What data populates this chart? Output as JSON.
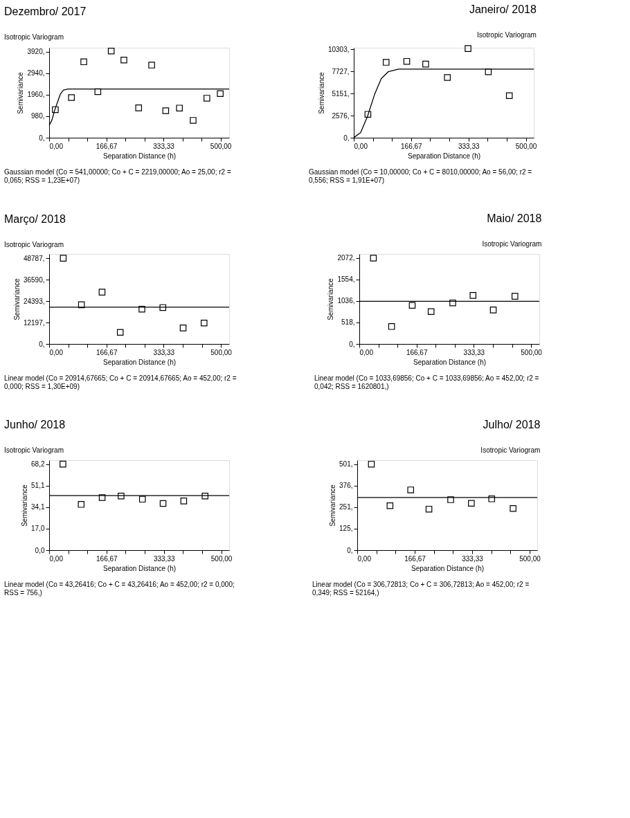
{
  "chart_data": [
    {
      "type": "scatter",
      "title": "Dezembro/ 2017",
      "subtitle": "Isotropic Variogram",
      "xlabel": "Separation Distance (h)",
      "ylabel": "Semivariance",
      "xlim": [
        0,
        525
      ],
      "ylim": [
        0,
        4100
      ],
      "xticks": [
        {
          "value": 0,
          "label": "0,00"
        },
        {
          "value": 55.56,
          "label": null
        },
        {
          "value": 111.11,
          "label": null
        },
        {
          "value": 166.67,
          "label": "166,67"
        },
        {
          "value": 222.22,
          "label": null
        },
        {
          "value": 277.78,
          "label": null
        },
        {
          "value": 333.33,
          "label": "333,33"
        },
        {
          "value": 388.89,
          "label": null
        },
        {
          "value": 444.44,
          "label": null
        },
        {
          "value": 500,
          "label": "500,00"
        }
      ],
      "yticks": [
        {
          "value": 0,
          "label": "0,"
        },
        {
          "value": 980,
          "label": "980,"
        },
        {
          "value": 1960,
          "label": "1960,"
        },
        {
          "value": 2940,
          "label": "2940,"
        },
        {
          "value": 3920,
          "label": "3920,"
        }
      ],
      "marker": "square",
      "annotations": [
        "Gaussian model (Co = 541,00000; Co + C = 2219,00000; Ao = 25,00; r2 = 0,065; RSS = 1,23E+07)"
      ],
      "series": [
        {
          "color": "#000000",
          "x": [
            18,
            65,
            101,
            142,
            181,
            218,
            261,
            299,
            340,
            380,
            420,
            460,
            499
          ],
          "values": [
            1280,
            1830,
            3460,
            2100,
            3950,
            3540,
            1360,
            3310,
            1230,
            1350,
            790,
            1800,
            2010
          ]
        },
        {
          "type": "line",
          "color": "#000000",
          "marker": "none",
          "x": [
            0,
            8,
            16,
            25,
            33,
            42,
            55,
            525
          ],
          "values": [
            560,
            800,
            1250,
            1650,
            2000,
            2170,
            2220,
            2220
          ]
        }
      ]
    },
    {
      "type": "scatter",
      "title": "Janeiro/ 2018",
      "subtitle": "Isotropic Variogram",
      "xlabel": "Separation Distance (h)",
      "ylabel": "Semivariance",
      "xlim": [
        0,
        523
      ],
      "ylim": [
        0,
        10500
      ],
      "xticks": [
        {
          "value": 0,
          "label": "0,00"
        },
        {
          "value": 55.56,
          "label": null
        },
        {
          "value": 111.11,
          "label": null
        },
        {
          "value": 166.67,
          "label": "166,67"
        },
        {
          "value": 222.22,
          "label": null
        },
        {
          "value": 277.78,
          "label": null
        },
        {
          "value": 333.33,
          "label": "333,33"
        },
        {
          "value": 388.89,
          "label": null
        },
        {
          "value": 444.44,
          "label": null
        },
        {
          "value": 500,
          "label": "500,00"
        }
      ],
      "yticks": [
        {
          "value": 0,
          "label": "0,"
        },
        {
          "value": 2576,
          "label": "2576,"
        },
        {
          "value": 5151,
          "label": "5151,"
        },
        {
          "value": 7727,
          "label": "7727,"
        },
        {
          "value": 10303,
          "label": "10303,"
        }
      ],
      "marker": "square",
      "annotations": [
        "Gaussian model (Co = 10,00000; Co + C = 8010,00000; Ao = 56,00; r2 = 0,556; RSS = 1,91E+07)"
      ],
      "series": [
        {
          "color": "#000000",
          "x": [
            41,
            94,
            154,
            209,
            272,
            332,
            391,
            452
          ],
          "values": [
            2730,
            8800,
            8910,
            8590,
            7030,
            10410,
            7690,
            4910
          ]
        },
        {
          "type": "line",
          "color": "#000000",
          "marker": "none",
          "x": [
            0,
            20,
            40,
            60,
            80,
            100,
            130,
            523
          ],
          "values": [
            10,
            600,
            2500,
            5000,
            6900,
            7700,
            8000,
            8010
          ]
        }
      ]
    },
    {
      "type": "scatter",
      "title": "Março/ 2018",
      "subtitle": "Isotropic Variogram",
      "xlabel": "Separation Distance (h)",
      "ylabel": "Semivariance",
      "xlim": [
        0,
        524
      ],
      "ylim": [
        0,
        51200
      ],
      "xticks": [
        {
          "value": 0,
          "label": "0,00"
        },
        {
          "value": 55.56,
          "label": null
        },
        {
          "value": 111.11,
          "label": null
        },
        {
          "value": 166.67,
          "label": "166,67"
        },
        {
          "value": 222.22,
          "label": null
        },
        {
          "value": 277.78,
          "label": null
        },
        {
          "value": 333.33,
          "label": "333,33"
        },
        {
          "value": 388.89,
          "label": null
        },
        {
          "value": 444.44,
          "label": null
        },
        {
          "value": 500,
          "label": "500,00"
        }
      ],
      "yticks": [
        {
          "value": 0,
          "label": "0,"
        },
        {
          "value": 12197,
          "label": "12197,"
        },
        {
          "value": 24393,
          "label": "24393,"
        },
        {
          "value": 36590,
          "label": "36590,"
        },
        {
          "value": 48787,
          "label": "48787,"
        }
      ],
      "marker": "square",
      "annotations": [
        "Linear model (Co = 20914,67665; Co + C = 20914,67665; Ao = 452,00; r2 = 0,000; RSS = 1,30E+09)"
      ],
      "series": [
        {
          "color": "#000000",
          "x": [
            41,
            94,
            154,
            207,
            270,
            331,
            390,
            451
          ],
          "values": [
            48800,
            22300,
            29500,
            6600,
            19800,
            20700,
            9100,
            11900
          ]
        },
        {
          "type": "line",
          "color": "#000000",
          "marker": "none",
          "x": [
            0,
            524
          ],
          "values": [
            20900,
            20900
          ]
        }
      ]
    },
    {
      "type": "scatter",
      "title": "Maio/ 2018",
      "subtitle": "Isotropic Variogram",
      "xlabel": "Separation Distance (h)",
      "ylabel": "Semivariance",
      "xlim": [
        0,
        524
      ],
      "ylim": [
        0,
        2170
      ],
      "xticks": [
        {
          "value": 0,
          "label": "0,00"
        },
        {
          "value": 55.56,
          "label": null
        },
        {
          "value": 111.11,
          "label": null
        },
        {
          "value": 166.67,
          "label": "166,67"
        },
        {
          "value": 222.22,
          "label": null
        },
        {
          "value": 277.78,
          "label": null
        },
        {
          "value": 333.33,
          "label": "333,33"
        },
        {
          "value": 388.89,
          "label": null
        },
        {
          "value": 444.44,
          "label": null
        },
        {
          "value": 500,
          "label": "500,00"
        }
      ],
      "yticks": [
        {
          "value": 0,
          "label": "0,"
        },
        {
          "value": 518,
          "label": "518,"
        },
        {
          "value": 1036,
          "label": "1036,"
        },
        {
          "value": 1554,
          "label": "1554,"
        },
        {
          "value": 2072,
          "label": "2072,"
        }
      ],
      "marker": "square",
      "annotations": [
        "Linear model (Co = 1033,69856; Co + C = 1033,69856; Ao = 452,00; r2 = 0,042; RSS = 1620801,)"
      ],
      "series": [
        {
          "color": "#000000",
          "x": [
            41,
            94,
            154,
            209,
            272,
            331,
            390,
            453
          ],
          "values": [
            2070,
            420,
            930,
            780,
            990,
            1170,
            820,
            1150
          ]
        },
        {
          "type": "line",
          "color": "#000000",
          "marker": "none",
          "x": [
            0,
            524
          ],
          "values": [
            1030,
            1030
          ]
        }
      ]
    },
    {
      "type": "scatter",
      "title": "Junho/ 2018",
      "subtitle": "Isotropic Variogram",
      "xlabel": "Separation Distance (h)",
      "ylabel": "Semivariance",
      "xlim": [
        0,
        523
      ],
      "ylim": [
        0,
        71.3
      ],
      "xticks": [
        {
          "value": 0,
          "label": "0,00"
        },
        {
          "value": 55.56,
          "label": null
        },
        {
          "value": 111.11,
          "label": null
        },
        {
          "value": 166.67,
          "label": "166,67"
        },
        {
          "value": 222.22,
          "label": null
        },
        {
          "value": 277.78,
          "label": null
        },
        {
          "value": 333.33,
          "label": "333,33"
        },
        {
          "value": 388.89,
          "label": null
        },
        {
          "value": 444.44,
          "label": null
        },
        {
          "value": 500,
          "label": "500,00"
        }
      ],
      "yticks": [
        {
          "value": 0,
          "label": "0,0"
        },
        {
          "value": 17.05,
          "label": "17,0"
        },
        {
          "value": 34.1,
          "label": "34,1"
        },
        {
          "value": 51.15,
          "label": "51,1"
        },
        {
          "value": 68.2,
          "label": "68,2"
        }
      ],
      "marker": "square",
      "annotations": [
        "Linear model (Co = 43,26416; Co + C = 43,26416; Ao = 452,00; r2 = 0,000; RSS = 756,)"
      ],
      "series": [
        {
          "color": "#000000",
          "x": [
            40,
            93,
            154,
            209,
            271,
            331,
            391,
            453
          ],
          "values": [
            68.2,
            36.3,
            41.7,
            42.9,
            40.4,
            37.0,
            39.0,
            42.9
          ]
        },
        {
          "type": "line",
          "color": "#000000",
          "marker": "none",
          "x": [
            0,
            523
          ],
          "values": [
            43.3,
            43.3
          ]
        }
      ]
    },
    {
      "type": "scatter",
      "title": "Julho/ 2018",
      "subtitle": "Isotropic Variogram",
      "xlabel": "Separation Distance (h)",
      "ylabel": "Semivariance",
      "xlim": [
        0,
        522
      ],
      "ylim": [
        0,
        524
      ],
      "xticks": [
        {
          "value": 0,
          "label": "0,00"
        },
        {
          "value": 55.56,
          "label": null
        },
        {
          "value": 111.11,
          "label": null
        },
        {
          "value": 166.67,
          "label": "166,67"
        },
        {
          "value": 222.22,
          "label": null
        },
        {
          "value": 277.78,
          "label": null
        },
        {
          "value": 333.33,
          "label": "333,33"
        },
        {
          "value": 388.89,
          "label": null
        },
        {
          "value": 444.44,
          "label": null
        },
        {
          "value": 500,
          "label": "500,00"
        }
      ],
      "yticks": [
        {
          "value": 0,
          "label": "0,"
        },
        {
          "value": 125.25,
          "label": "125,"
        },
        {
          "value": 250.5,
          "label": "251,"
        },
        {
          "value": 375.75,
          "label": "376,"
        },
        {
          "value": 501,
          "label": "501,"
        }
      ],
      "marker": "square",
      "annotations": [
        "Linear model (Co = 306,72813; Co + C = 306,72813; Ao = 452,00; r2 = 0,349; RSS = 52164,)"
      ],
      "series": [
        {
          "color": "#000000",
          "x": [
            41,
            95,
            155,
            208,
            271,
            331,
            390,
            452
          ],
          "values": [
            501,
            259,
            351,
            239,
            294,
            273,
            299,
            243
          ]
        },
        {
          "type": "line",
          "color": "#000000",
          "marker": "none",
          "x": [
            0,
            522
          ],
          "values": [
            307,
            307
          ]
        }
      ]
    }
  ]
}
